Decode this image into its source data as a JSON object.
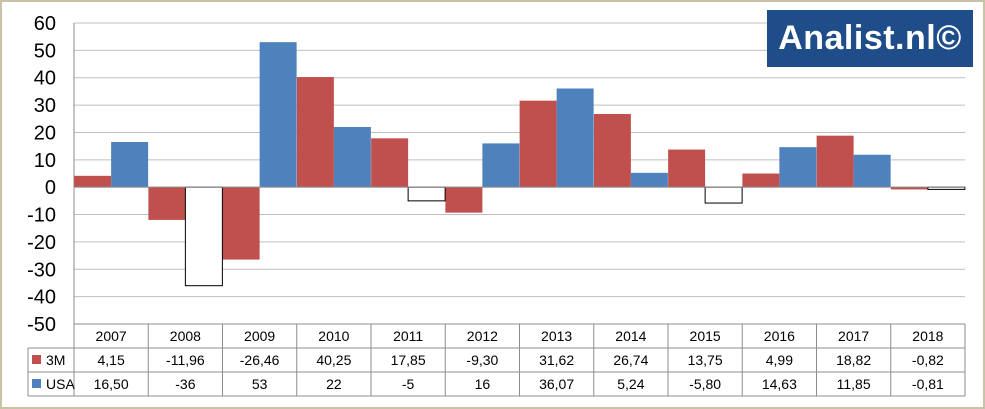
{
  "logo": {
    "text": "Analist.nl©"
  },
  "chart_data": {
    "type": "bar",
    "title": "",
    "xlabel": "",
    "ylabel": "",
    "ylim": [
      -50,
      60
    ],
    "yticks": [
      60,
      50,
      40,
      30,
      20,
      10,
      0,
      -10,
      -20,
      -30,
      -40,
      -50
    ],
    "categories": [
      "2007",
      "2008",
      "2009",
      "2010",
      "2011",
      "2012",
      "2013",
      "2014",
      "2015",
      "2016",
      "2017",
      "2018"
    ],
    "grid": true,
    "legend": "data table below chart",
    "series": [
      {
        "name": "3M",
        "color": "#c0504d",
        "negative_fill": "#c0504d",
        "values": [
          4.15,
          -11.96,
          -26.46,
          40.25,
          17.85,
          -9.3,
          31.62,
          26.74,
          13.75,
          4.99,
          18.82,
          -0.82
        ],
        "labels": [
          "4,15",
          "-11,96",
          "-26,46",
          "40,25",
          "17,85",
          "-9,30",
          "31,62",
          "26,74",
          "13,75",
          "4,99",
          "18,82",
          "-0,82"
        ]
      },
      {
        "name": "USA",
        "color": "#4f81bd",
        "negative_fill": "#ffffff",
        "values": [
          16.5,
          -36,
          53,
          22,
          -5,
          16,
          36.07,
          5.24,
          -5.8,
          14.63,
          11.85,
          -0.81
        ],
        "labels": [
          "16,50",
          "-36",
          "53",
          "22",
          "-5",
          "16",
          "36,07",
          "5,24",
          "-5,80",
          "14,63",
          "11,85",
          "-0,81"
        ]
      }
    ]
  }
}
